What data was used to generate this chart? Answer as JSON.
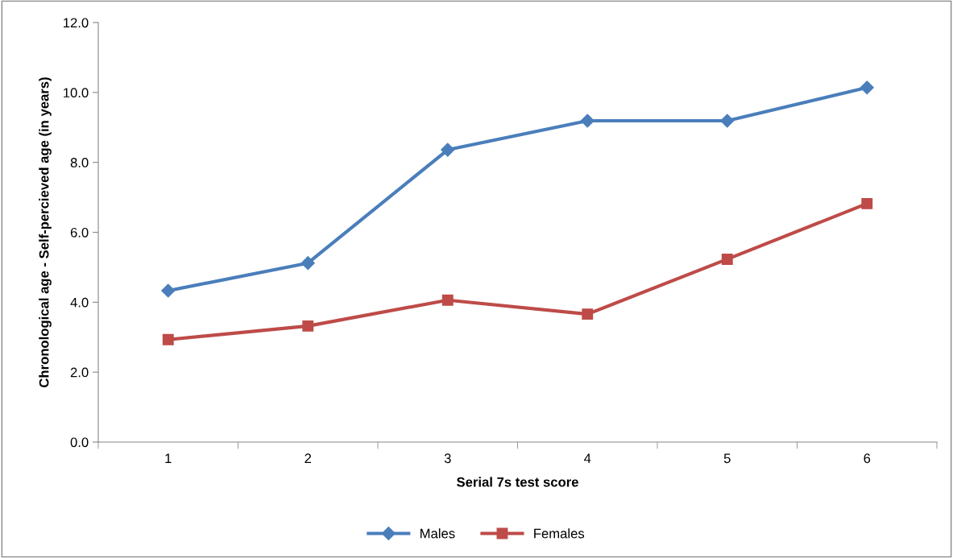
{
  "chart_data": {
    "type": "line",
    "xlabel": "Serial 7s test score",
    "ylabel": "Chronological age - Self-percieved age (in years)",
    "categories": [
      "1",
      "2",
      "3",
      "4",
      "5",
      "6"
    ],
    "series": [
      {
        "name": "Males",
        "color": "#4a7ebb",
        "marker": "diamond",
        "values": [
          4.33,
          5.12,
          8.36,
          9.19,
          9.19,
          10.14
        ]
      },
      {
        "name": "Females",
        "color": "#be4b48",
        "marker": "square",
        "values": [
          2.93,
          3.32,
          4.06,
          3.66,
          5.23,
          6.82
        ]
      }
    ],
    "ylim": [
      0,
      12
    ],
    "yticks": [
      {
        "value": 0,
        "label": "0.0"
      },
      {
        "value": 2,
        "label": "2.0"
      },
      {
        "value": 4,
        "label": "4.0"
      },
      {
        "value": 6,
        "label": "6.0"
      },
      {
        "value": 8,
        "label": "8.0"
      },
      {
        "value": 10,
        "label": "10.0"
      },
      {
        "value": 12,
        "label": "12.0"
      }
    ],
    "grid": false,
    "legend": "bottom",
    "line_style": "solid"
  }
}
